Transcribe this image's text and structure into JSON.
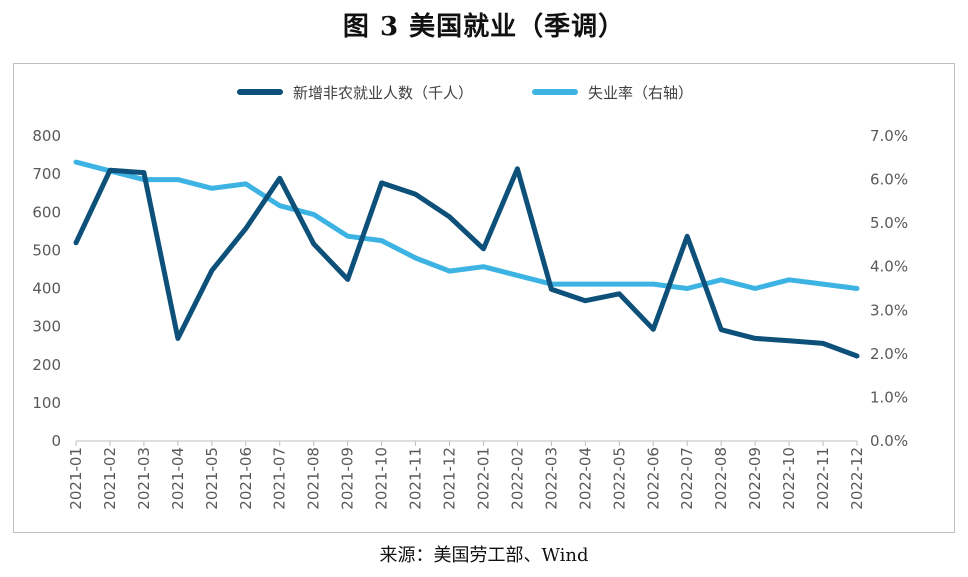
{
  "title": "图 3 美国就业（季调）",
  "source": "来源：美国劳工部、Wind",
  "colors": {
    "payrolls": "#0d5079",
    "unemployment": "#3cb3e3",
    "axis": "#bfbfbf",
    "text": "#595959"
  },
  "chart_data": {
    "type": "line",
    "legend_position": "top",
    "grid": false,
    "categories": [
      "2021-01",
      "2021-02",
      "2021-03",
      "2021-04",
      "2021-05",
      "2021-06",
      "2021-07",
      "2021-08",
      "2021-09",
      "2021-10",
      "2021-11",
      "2021-12",
      "2022-01",
      "2022-02",
      "2022-03",
      "2022-04",
      "2022-05",
      "2022-06",
      "2022-07",
      "2022-08",
      "2022-09",
      "2022-10",
      "2022-11",
      "2022-12"
    ],
    "left_axis": {
      "min": 0,
      "max": 800,
      "ticks": [
        "0",
        "100",
        "200",
        "300",
        "400",
        "500",
        "600",
        "700",
        "800"
      ]
    },
    "right_axis": {
      "min": 0,
      "max": 7,
      "ticks": [
        "0.0%",
        "1.0%",
        "2.0%",
        "3.0%",
        "4.0%",
        "5.0%",
        "6.0%",
        "7.0%"
      ]
    },
    "series": [
      {
        "name": "新增非农就业人数（千人）",
        "axis": "left",
        "values": [
          520,
          710,
          704,
          269,
          447,
          557,
          689,
          517,
          424,
          677,
          647,
          588,
          504,
          714,
          398,
          368,
          386,
          293,
          537,
          292,
          269,
          263,
          256,
          223
        ]
      },
      {
        "name": "失业率（右轴）",
        "axis": "right",
        "values": [
          6.4,
          6.2,
          6.0,
          6.0,
          5.8,
          5.9,
          5.4,
          5.2,
          4.7,
          4.6,
          4.2,
          3.9,
          4.0,
          3.8,
          3.6,
          3.6,
          3.6,
          3.6,
          3.5,
          3.7,
          3.5,
          3.7,
          3.6,
          3.5
        ]
      }
    ]
  }
}
